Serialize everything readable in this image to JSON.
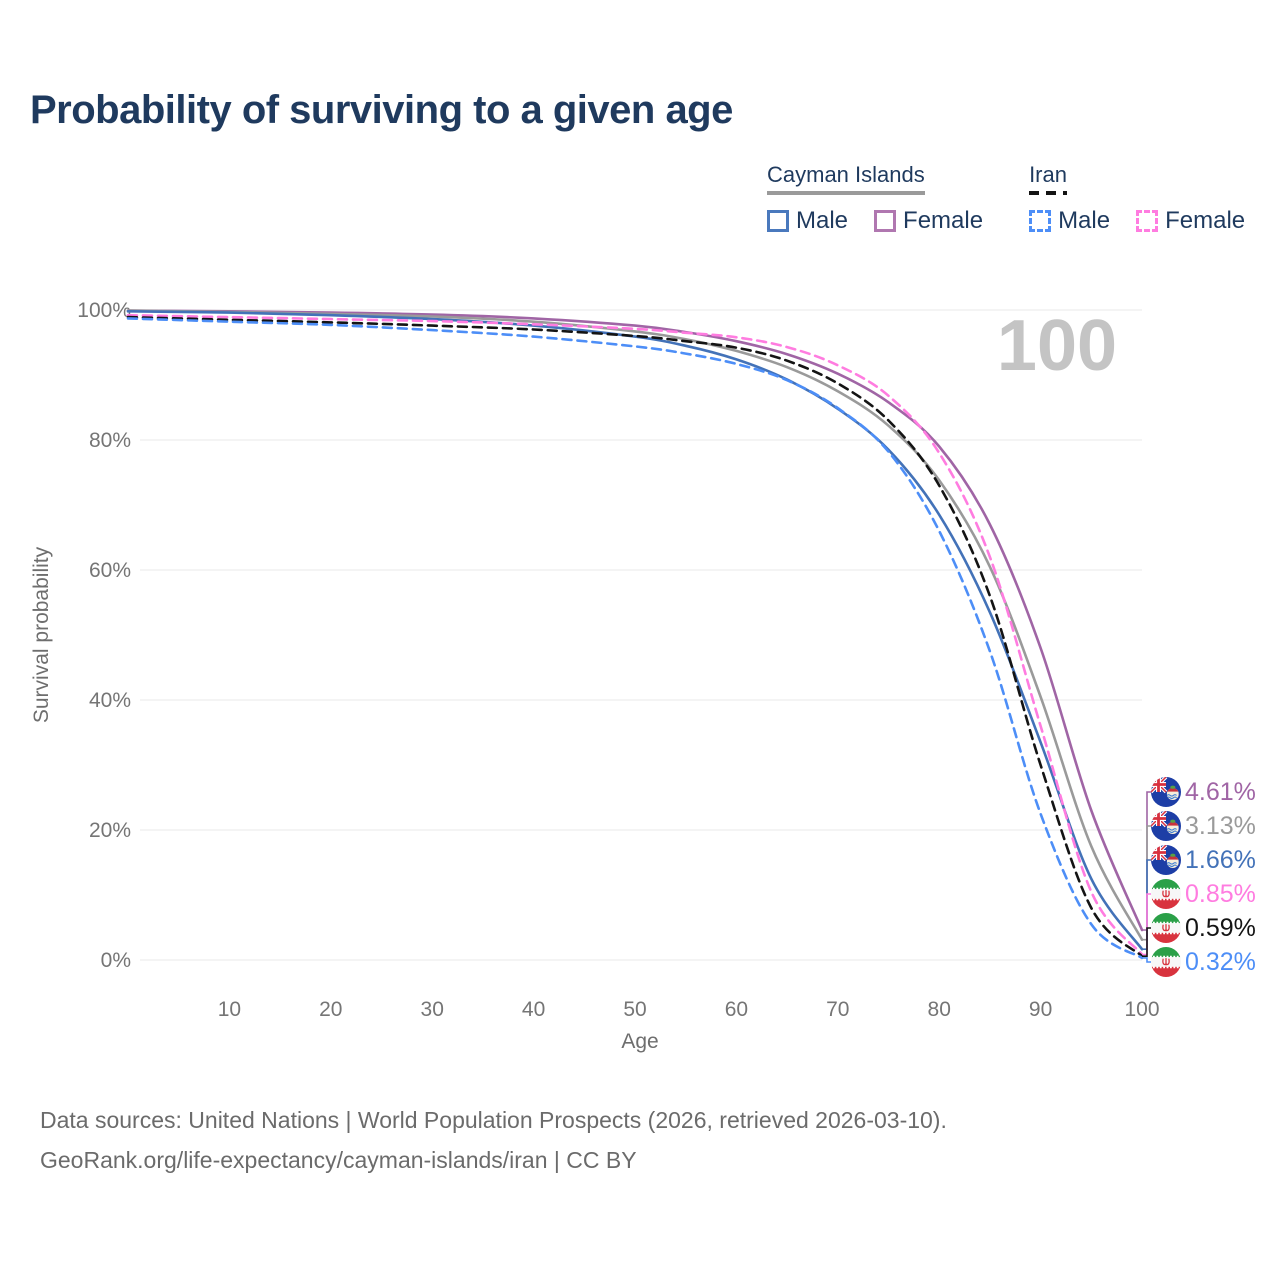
{
  "title": "Probability of surviving to a given age",
  "watermark": "100",
  "legend": {
    "groups": [
      {
        "name": "Cayman Islands",
        "line_style": "solid",
        "underline_color": "#9a9a9a",
        "items": [
          {
            "label": "Male",
            "color": "#4a79bd",
            "style": "solid"
          },
          {
            "label": "Female",
            "color": "#b077b0",
            "style": "solid"
          }
        ]
      },
      {
        "name": "Iran",
        "line_style": "dashed",
        "underline_color": "#141414",
        "items": [
          {
            "label": "Male",
            "color": "#4d8ef7",
            "style": "dashed"
          },
          {
            "label": "Female",
            "color": "#ff7ce0",
            "style": "dashed"
          }
        ]
      }
    ]
  },
  "chart_data": {
    "type": "line",
    "title": "Probability of surviving to a given age",
    "xlabel": "Age",
    "ylabel": "Survival probability",
    "xlim": [
      0,
      100
    ],
    "ylim": [
      0,
      100
    ],
    "grid": "horizontal",
    "legend_position": "top-right",
    "x_ticks": [
      10,
      20,
      30,
      40,
      50,
      60,
      70,
      80,
      90,
      100
    ],
    "y_ticks": [
      {
        "value": 0,
        "label": "0%"
      },
      {
        "value": 20,
        "label": "20%"
      },
      {
        "value": 40,
        "label": "40%"
      },
      {
        "value": 60,
        "label": "60%"
      },
      {
        "value": 80,
        "label": "80%"
      },
      {
        "value": 100,
        "label": "100%"
      }
    ],
    "ages": [
      0,
      10,
      20,
      30,
      40,
      50,
      55,
      60,
      65,
      70,
      75,
      80,
      85,
      90,
      95,
      100
    ],
    "series": [
      {
        "id": "cayman-islands-female",
        "label": "Cayman Islands Female",
        "color": "#a065a5",
        "dash": "solid",
        "end_label": "4.61%",
        "flag": "cayman-islands",
        "values": [
          99.9,
          99.8,
          99.6,
          99.3,
          98.7,
          97.6,
          96.6,
          95.2,
          93.2,
          90.2,
          85.8,
          79.0,
          67.0,
          48.0,
          23.0,
          4.61
        ]
      },
      {
        "id": "cayman-islands",
        "label": "Cayman Islands",
        "color": "#9a9a9a",
        "dash": "solid",
        "end_label": "3.13%",
        "flag": "cayman-islands",
        "values": [
          99.9,
          99.7,
          99.4,
          99.0,
          98.2,
          96.7,
          95.5,
          93.7,
          91.2,
          87.5,
          82.2,
          73.8,
          60.5,
          40.5,
          17.5,
          3.13
        ]
      },
      {
        "id": "cayman-islands-male",
        "label": "Cayman Islands Male",
        "color": "#4372b8",
        "dash": "solid",
        "end_label": "1.66%",
        "flag": "cayman-islands",
        "values": [
          99.8,
          99.6,
          99.2,
          98.6,
          97.6,
          95.9,
          94.5,
          92.4,
          89.3,
          84.8,
          78.5,
          68.5,
          53.5,
          33.5,
          12.5,
          1.66
        ]
      },
      {
        "id": "iran-female",
        "label": "Iran Female",
        "color": "#ff7ce0",
        "dash": "dashed",
        "end_label": "0.85%",
        "flag": "iran",
        "values": [
          99.2,
          98.9,
          98.6,
          98.3,
          97.8,
          97.1,
          96.5,
          95.8,
          94.3,
          91.5,
          86.8,
          78.0,
          62.0,
          36.0,
          10.5,
          0.85
        ]
      },
      {
        "id": "iran",
        "label": "Iran",
        "color": "#141414",
        "dash": "dashed",
        "end_label": "0.59%",
        "flag": "iran",
        "values": [
          98.9,
          98.5,
          98.1,
          97.6,
          97.0,
          96.0,
          95.2,
          94.2,
          92.2,
          88.7,
          83.0,
          73.0,
          56.0,
          30.0,
          8.0,
          0.59
        ]
      },
      {
        "id": "iran-male",
        "label": "Iran Male",
        "color": "#4d8ef7",
        "dash": "dashed",
        "end_label": "0.32%",
        "flag": "iran",
        "values": [
          98.7,
          98.2,
          97.7,
          96.9,
          95.9,
          94.4,
          93.3,
          91.7,
          89.2,
          84.9,
          78.2,
          66.0,
          47.5,
          22.5,
          5.5,
          0.32
        ]
      }
    ]
  },
  "footer": {
    "line1": "Data sources: United Nations | World Population Prospects (2026, retrieved 2026-03-10).",
    "line2": "GeoRank.org/life-expectancy/cayman-islands/iran | CC BY"
  }
}
